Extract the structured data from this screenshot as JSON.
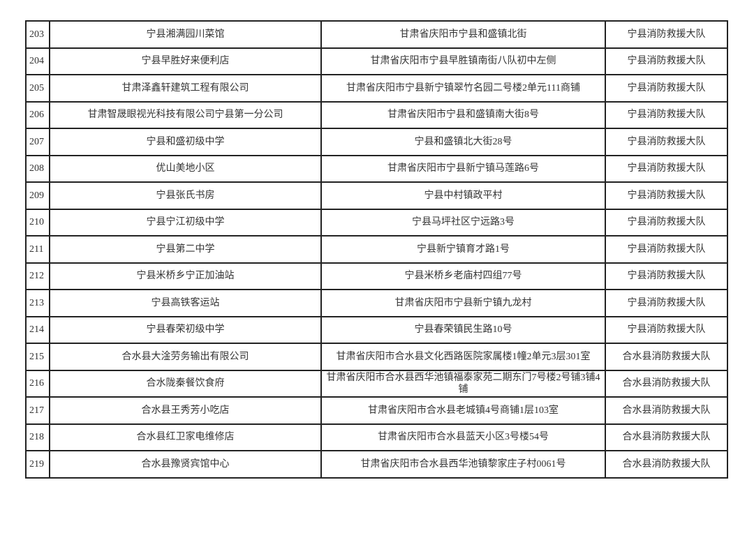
{
  "table": {
    "rows": [
      [
        "203",
        "宁县湘满园川菜馆",
        "甘肃省庆阳市宁县和盛镇北街",
        "宁县消防救援大队"
      ],
      [
        "204",
        "宁县早胜好来便利店",
        "甘肃省庆阳市宁县早胜镇南街八队初中左侧",
        "宁县消防救援大队"
      ],
      [
        "205",
        "甘肃泽鑫轩建筑工程有限公司",
        "甘肃省庆阳市宁县新宁镇翠竹名园二号楼2单元111商铺",
        "宁县消防救援大队"
      ],
      [
        "206",
        "甘肃智晟眼视光科技有限公司宁县第一分公司",
        "甘肃省庆阳市宁县和盛镇南大街8号",
        "宁县消防救援大队"
      ],
      [
        "207",
        "宁县和盛初级中学",
        "宁县和盛镇北大街28号",
        "宁县消防救援大队"
      ],
      [
        "208",
        "优山美地小区",
        "甘肃省庆阳市宁县新宁镇马莲路6号",
        "宁县消防救援大队"
      ],
      [
        "209",
        "宁县张氏书房",
        "宁县中村镇政平村",
        "宁县消防救援大队"
      ],
      [
        "210",
        "宁县宁江初级中学",
        "宁县马坪社区宁远路3号",
        "宁县消防救援大队"
      ],
      [
        "211",
        "宁县第二中学",
        "宁县新宁镇育才路1号",
        "宁县消防救援大队"
      ],
      [
        "212",
        "宁县米桥乡宁正加油站",
        "宁县米桥乡老庙村四组77号",
        "宁县消防救援大队"
      ],
      [
        "213",
        "宁县高铁客运站",
        "甘肃省庆阳市宁县新宁镇九龙村",
        "宁县消防救援大队"
      ],
      [
        "214",
        "宁县春荣初级中学",
        "宁县春荣镇民生路10号",
        "宁县消防救援大队"
      ],
      [
        "215",
        "合水县大淦劳务输出有限公司",
        "甘肃省庆阳市合水县文化西路医院家属楼1幢2单元3层301室",
        "合水县消防救援大队"
      ],
      [
        "216",
        "合水陇秦餐饮食府",
        "甘肃省庆阳市合水县西华池镇福泰家苑二期东门7号楼2号铺3铺4铺",
        "合水县消防救援大队"
      ],
      [
        "217",
        "合水县王秀芳小吃店",
        "甘肃省庆阳市合水县老城镇4号商铺1层103室",
        "合水县消防救援大队"
      ],
      [
        "218",
        "合水县红卫家电维修店",
        "甘肃省庆阳市合水县蓝天小区3号楼54号",
        "合水县消防救援大队"
      ],
      [
        "219",
        "合水县豫贤宾馆中心",
        "甘肃省庆阳市合水县西华池镇黎家庄子村0061号",
        "合水县消防救援大队"
      ]
    ]
  }
}
